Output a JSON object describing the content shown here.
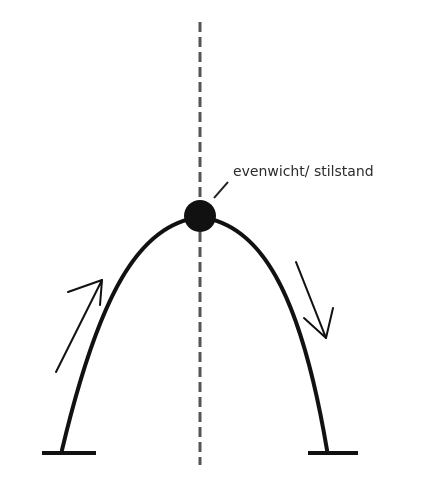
{
  "annotation": {
    "text": "evenwicht/ stilstand"
  },
  "colors": {
    "ink": "#111111",
    "axis": "#555555",
    "text": "#2b2b2b"
  }
}
